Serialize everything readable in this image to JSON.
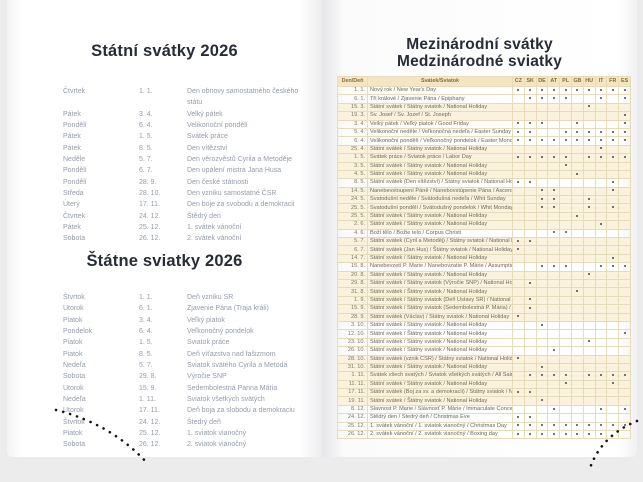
{
  "left_page": {
    "czech": {
      "title": "Státní svátky 2026",
      "rows": [
        [
          "Čtvrtek",
          "1. 1.",
          "Den obnovy samostatného českého státu"
        ],
        [
          "Pátek",
          "3. 4.",
          "Velký pátek"
        ],
        [
          "Pondělí",
          "6. 4.",
          "Velikonoční pondělí"
        ],
        [
          "Pátek",
          "1. 5.",
          "Svátek práce"
        ],
        [
          "Pátek",
          "8. 5.",
          "Den vítězství"
        ],
        [
          "Neděle",
          "5. 7.",
          "Den věrozvěstů Cyrila a Metoděje"
        ],
        [
          "Pondělí",
          "6. 7.",
          "Den upálení mistra Jana Husa"
        ],
        [
          "Pondělí",
          "28. 9.",
          "Den české státnosti"
        ],
        [
          "Středa",
          "28. 10.",
          "Den vzniku samostatné ČSR"
        ],
        [
          "Úterý",
          "17. 11.",
          "Den boje za svobodu a demokracii"
        ],
        [
          "Čtvrtek",
          "24. 12.",
          "Štědrý den"
        ],
        [
          "Pátek",
          "25. 12.",
          "1. svátek vánoční"
        ],
        [
          "Sobota",
          "26. 12.",
          "2. svátek vánoční"
        ]
      ]
    },
    "slovak": {
      "title": "Štátne sviatky 2026",
      "rows": [
        [
          "Štvrtok",
          "1. 1.",
          "Deň vzniku SR"
        ],
        [
          "Utorok",
          "6. 1.",
          "Zjavenie Pána (Traja králi)"
        ],
        [
          "Piatok",
          "3. 4.",
          "Veľký piatok"
        ],
        [
          "Pondelok",
          "6. 4.",
          "Veľkonočný pondelok"
        ],
        [
          "Piatok",
          "1. 5.",
          "Sviatok práce"
        ],
        [
          "Piatok",
          "8. 5.",
          "Deň víťazstva nad fašizmom"
        ],
        [
          "Nedeľa",
          "5. 7.",
          "Sviatok svätého Cyrila a Metoda"
        ],
        [
          "Sobota",
          "29. 8.",
          "Výročie SNP"
        ],
        [
          "Utorok",
          "15. 9.",
          "Sedembolestná Panna Mária"
        ],
        [
          "Nedeľa",
          "1. 11.",
          "Sviatok všetkých svätých"
        ],
        [
          "Utorok",
          "17. 11.",
          "Deň boja za slobodu a demokraciu"
        ],
        [
          "Štvrtok",
          "24. 12.",
          "Štedrý deň"
        ],
        [
          "Piatok",
          "25. 12.",
          "1. sviatok vianočný"
        ],
        [
          "Sobota",
          "26. 12.",
          "2. sviatok vianočný"
        ]
      ]
    }
  },
  "right_page": {
    "title_line1": "Mezinárodní svátky",
    "title_line2": "Medzinárodné sviatky",
    "table": {
      "day_header": "Den/Deň",
      "holiday_header": "Svátek/Sviatok",
      "countries": [
        "CZ",
        "SK",
        "DE",
        "AT",
        "PL",
        "GB",
        "HU",
        "IT",
        "FR",
        "ES"
      ],
      "rows": [
        {
          "date": "1. 1.",
          "name": "Nový rok / New Year's Day",
          "marks": [
            "CZ",
            "SK",
            "DE",
            "AT",
            "PL",
            "GB",
            "HU",
            "IT",
            "FR",
            "ES"
          ],
          "shaded": false
        },
        {
          "date": "6. 1.",
          "name": "Tři králové / Zjavenie Pána / Epiphany",
          "marks": [
            "SK",
            "DE",
            "AT",
            "PL",
            "IT",
            "ES"
          ],
          "shaded": false
        },
        {
          "date": "15. 3.",
          "name": "Státní svátek / Štátny sviatok / National Holiday",
          "marks": [
            "HU"
          ],
          "shaded": true
        },
        {
          "date": "19. 3.",
          "name": "Sv. Josef / Sv. Jozef / St. Joseph",
          "marks": [
            "ES"
          ],
          "shaded": true
        },
        {
          "date": "3. 4.",
          "name": "Velký pátek / Veľký piatok / Good Friday",
          "marks": [
            "CZ",
            "SK",
            "DE",
            "GB",
            "ES"
          ],
          "shaded": false
        },
        {
          "date": "5. 4.",
          "name": "Velikonoční neděle / Veľkonočná nedeľa / Easter Sunday",
          "marks": [
            "CZ",
            "SK",
            "PL",
            "GB",
            "HU",
            "IT",
            "FR",
            "ES"
          ],
          "shaded": false
        },
        {
          "date": "6. 4.",
          "name": "Velikonoční pondělí / Veľkonočný pondelok / Easter Monday",
          "marks": [
            "CZ",
            "SK",
            "DE",
            "AT",
            "PL",
            "GB",
            "HU",
            "IT",
            "FR",
            "ES"
          ],
          "shaded": false
        },
        {
          "date": "25. 4.",
          "name": "Státní svátek / Štátny sviatok / National Holiday",
          "marks": [
            "IT"
          ],
          "shaded": true
        },
        {
          "date": "1. 5.",
          "name": "Svátek práce / Sviatok práce / Labor Day",
          "marks": [
            "CZ",
            "SK",
            "DE",
            "AT",
            "PL",
            "HU",
            "IT",
            "FR",
            "ES"
          ],
          "shaded": true
        },
        {
          "date": "3. 5.",
          "name": "Státní svátek / Štátny sviatok / National Holiday",
          "marks": [
            "PL"
          ],
          "shaded": true
        },
        {
          "date": "4. 5.",
          "name": "Státní svátek / Štátny sviatok / National Holiday",
          "marks": [
            "GB"
          ],
          "shaded": true
        },
        {
          "date": "8. 5.",
          "name": "Státní svátek (Den vítězství) / Štátny sviatok / National Holiday",
          "marks": [
            "CZ",
            "SK",
            "FR"
          ],
          "shaded": false
        },
        {
          "date": "14. 5.",
          "name": "Nanebevstoupení Páně / Nanebovstúpenie Pána / Ascension Day",
          "marks": [
            "DE",
            "AT",
            "FR"
          ],
          "shaded": true
        },
        {
          "date": "24. 5.",
          "name": "Svatodušní neděle / Svätodušná nedeľa / Whit Sunday",
          "marks": [
            "DE",
            "AT",
            "HU"
          ],
          "shaded": true
        },
        {
          "date": "25. 5.",
          "name": "Svatodušní pondělí / Svätodušný pondelok / Whit Monday",
          "marks": [
            "DE",
            "AT",
            "HU",
            "FR"
          ],
          "shaded": true
        },
        {
          "date": "25. 5.",
          "name": "Státní svátek / Štátny sviatok / National Holiday",
          "marks": [
            "GB"
          ],
          "shaded": true
        },
        {
          "date": "2. 6.",
          "name": "Státní svátek / Štátny sviatok / National Holiday",
          "marks": [
            "IT"
          ],
          "shaded": true
        },
        {
          "date": "4. 6.",
          "name": "Boží tělo / Božie telo / Corpus Christi",
          "marks": [
            "AT",
            "PL"
          ],
          "shaded": false
        },
        {
          "date": "5. 7.",
          "name": "Státní svátek (Cyril a Metoděj) / Štátny sviatok / National Holiday",
          "marks": [
            "CZ",
            "SK"
          ],
          "shaded": true
        },
        {
          "date": "6. 7.",
          "name": "Státní svátek (Jan Hus) / Štátny sviatok / National Holiday",
          "marks": [
            "CZ"
          ],
          "shaded": true
        },
        {
          "date": "14. 7.",
          "name": "Státní svátek / Štátny sviatok / National Holiday",
          "marks": [
            "FR"
          ],
          "shaded": true
        },
        {
          "date": "15. 8.",
          "name": "Nanebevzetí P. Marie / Nanebovzatie P. Márie / Assumption of Virgin Mary",
          "marks": [
            "DE",
            "AT",
            "PL",
            "IT",
            "FR",
            "ES"
          ],
          "shaded": false
        },
        {
          "date": "20. 8.",
          "name": "Státní svátek / Štátny sviatok / National Holiday",
          "marks": [
            "HU"
          ],
          "shaded": true
        },
        {
          "date": "29. 8.",
          "name": "Státní svátek / Štátny sviatok (Výročie SNP) / National Holiday",
          "marks": [
            "SK"
          ],
          "shaded": true
        },
        {
          "date": "31. 8.",
          "name": "Státní svátek / Štátny sviatok / National Holiday",
          "marks": [
            "GB"
          ],
          "shaded": true
        },
        {
          "date": "1. 9.",
          "name": "Státní svátek / Štátny sviatok (Deň Ústavy SR) / National Holiday",
          "marks": [
            "SK"
          ],
          "shaded": true
        },
        {
          "date": "15. 9.",
          "name": "Státní svátek / Štátny sviatok (Sedembolestná P. Mária) / National Holiday",
          "marks": [
            "SK"
          ],
          "shaded": true
        },
        {
          "date": "28. 9.",
          "name": "Státní svátek (Václav) / Štátny sviatok / National Holiday",
          "marks": [
            "CZ"
          ],
          "shaded": true
        },
        {
          "date": "3. 10.",
          "name": "Státní svátek / Štátny sviatok / National Holiday",
          "marks": [
            "DE"
          ],
          "shaded": false
        },
        {
          "date": "12. 10.",
          "name": "Státní svátek / Štátny sviatok / National Holiday",
          "marks": [
            "ES"
          ],
          "shaded": false
        },
        {
          "date": "23. 10.",
          "name": "Státní svátek / Štátny sviatok / National Holiday",
          "marks": [
            "HU"
          ],
          "shaded": false
        },
        {
          "date": "26. 10.",
          "name": "Státní svátek / Štátny sviatok / National Holiday",
          "marks": [
            "AT"
          ],
          "shaded": false
        },
        {
          "date": "28. 10.",
          "name": "Státní svátek (vznik ČSR) / Štátny sviatok / National Holiday",
          "marks": [
            "CZ"
          ],
          "shaded": true
        },
        {
          "date": "31. 10.",
          "name": "Státní svátek / Štátny sviatok / National Holiday",
          "marks": [
            "DE"
          ],
          "shaded": true
        },
        {
          "date": "1. 11.",
          "name": "Svátek všech svatých / Sviatok všetkých svätých / All Saints",
          "marks": [
            "SK",
            "DE",
            "AT",
            "PL",
            "HU",
            "IT",
            "FR",
            "ES"
          ],
          "shaded": true
        },
        {
          "date": "11. 11.",
          "name": "Státní svátek / Štátny sviatok / National Holiday",
          "marks": [
            "PL",
            "FR"
          ],
          "shaded": true
        },
        {
          "date": "17. 11.",
          "name": "Státní svátek (Boj za sv. a demokracii) / Štátny sviatok / National Holiday",
          "marks": [
            "CZ",
            "SK"
          ],
          "shaded": true
        },
        {
          "date": "19. 11.",
          "name": "Státní svátek / Štátny sviatok / National Holiday",
          "marks": [
            "DE"
          ],
          "shaded": true
        },
        {
          "date": "8. 12.",
          "name": "Slavnost P. Marie / Slávnosť P. Márie / Immaculate Conception",
          "marks": [
            "AT",
            "IT",
            "ES"
          ],
          "shaded": false
        },
        {
          "date": "24. 12.",
          "name": "Štědrý den / Štedrý deň / Christmas Eve",
          "marks": [
            "CZ",
            "SK"
          ],
          "shaded": false
        },
        {
          "date": "25. 12.",
          "name": "1. svátek vánoční / 1. sviatok vianočný / Christmas Day",
          "marks": [
            "CZ",
            "SK",
            "DE",
            "AT",
            "PL",
            "GB",
            "HU",
            "IT",
            "FR",
            "ES"
          ],
          "shaded": false
        },
        {
          "date": "26. 12.",
          "name": "2. svátek vánoční / 2. sviatok vianočný / Boxing day",
          "marks": [
            "CZ",
            "SK",
            "DE",
            "AT",
            "PL",
            "GB",
            "HU",
            "IT"
          ],
          "shaded": false
        }
      ]
    }
  },
  "colors": {
    "title": "#272c37",
    "left_text": "#949caa",
    "header_bg": "#f3e6c2",
    "header_text": "#8a6a3a",
    "row_shade": "#faf2dc",
    "grid": "#e7dcba",
    "dot": "#4a4a4a",
    "stitch": "#161616"
  }
}
